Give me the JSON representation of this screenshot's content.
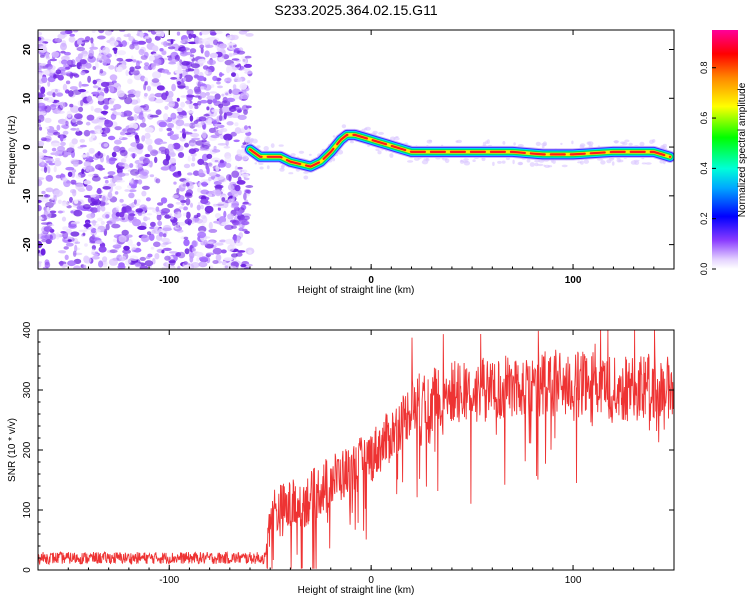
{
  "title": "S233.2025.364.02.15.G11",
  "chart_data": [
    {
      "type": "heatmap",
      "xlabel": "Height of straight line (km)",
      "ylabel": "Frequency (Hz)",
      "xlim": [
        -165,
        150
      ],
      "ylim": [
        -25,
        24
      ],
      "x_ticks": [
        -100,
        0,
        100
      ],
      "y_ticks": [
        20,
        10,
        0,
        -10,
        -20
      ],
      "noise_region_x": [
        -165,
        -60
      ],
      "ridge": {
        "x": [
          -60,
          -55,
          -50,
          -45,
          -40,
          -35,
          -30,
          -25,
          -20,
          -15,
          -12,
          -8,
          -4,
          0,
          4,
          8,
          12,
          16,
          20,
          30,
          50,
          70,
          85,
          100,
          120,
          140,
          148
        ],
        "y": [
          -0.5,
          -2,
          -2,
          -2,
          -3,
          -3.5,
          -4,
          -3,
          -1,
          1.5,
          2.5,
          2.5,
          2,
          1.5,
          1,
          0.5,
          0,
          -0.5,
          -1,
          -1,
          -1,
          -1,
          -1.5,
          -1.5,
          -1,
          -1,
          -2
        ]
      },
      "colorbar": {
        "label": "Normalized spectral amplitude",
        "ticks": [
          "0.0",
          "0.2",
          "0.4",
          "0.6",
          "0.8"
        ],
        "range": [
          0.0,
          0.95
        ],
        "colors": [
          "#ffffff",
          "#7020ff",
          "#0000ff",
          "#00d8ff",
          "#00ff00",
          "#ffff00",
          "#ff8000",
          "#ff0000",
          "#ff0088"
        ]
      }
    },
    {
      "type": "line",
      "xlabel": "Height of straight line (km)",
      "ylabel": "SNR (10 * v/v)",
      "xlim": [
        -165,
        150
      ],
      "ylim": [
        0,
        400
      ],
      "x_ticks": [
        -100,
        0,
        100
      ],
      "y_ticks": [
        0,
        100,
        200,
        300,
        400
      ],
      "line_color": "#ee3333",
      "series_trend": {
        "x": [
          -165,
          -100,
          -52,
          -50,
          -40,
          -30,
          -20,
          -10,
          0,
          10,
          20,
          40,
          60,
          80,
          100,
          120,
          150
        ],
        "y": [
          20,
          20,
          20,
          95,
          105,
          120,
          150,
          165,
          190,
          225,
          270,
          295,
          300,
          310,
          310,
          300,
          305
        ]
      }
    }
  ]
}
